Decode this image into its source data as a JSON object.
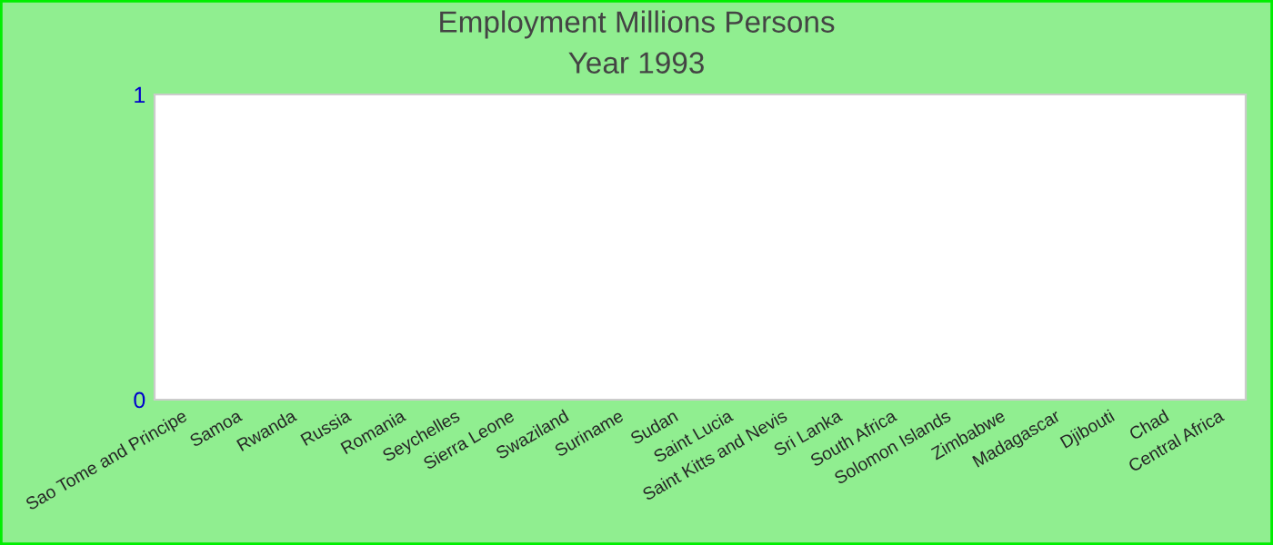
{
  "chart_data": {
    "type": "bar",
    "title": "Employment Millions Persons",
    "subtitle": "Year 1993",
    "categories": [
      "Sao Tome and Principe",
      "Samoa",
      "Rwanda",
      "Russia",
      "Romania",
      "Seychelles",
      "Sierra Leone",
      "Swaziland",
      "Suriname",
      "Sudan",
      "Saint Lucia",
      "Saint Kitts and Nevis",
      "Sri Lanka",
      "South Africa",
      "Solomon Islands",
      "Zimbabwe",
      "Madagascar",
      "Djibouti",
      "Chad",
      "Central Africa"
    ],
    "values": [
      null,
      null,
      null,
      null,
      null,
      null,
      null,
      null,
      null,
      null,
      null,
      null,
      null,
      null,
      null,
      null,
      null,
      null,
      null,
      null
    ],
    "ylim": [
      0,
      1
    ],
    "yticks": [
      0,
      1
    ],
    "grid": false,
    "legend": false
  }
}
